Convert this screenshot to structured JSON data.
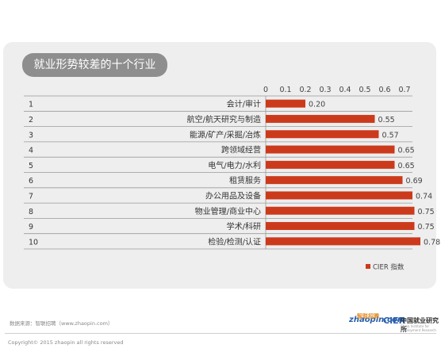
{
  "chart_data": {
    "type": "bar",
    "orientation": "horizontal",
    "title": "就业形势较差的十个行业",
    "ranks": [
      "1",
      "2",
      "3",
      "4",
      "5",
      "6",
      "7",
      "8",
      "9",
      "10"
    ],
    "categories": [
      "会计/审计",
      "航空/航天研究与制造",
      "能源/矿产/采掘/冶炼",
      "跨领域经营",
      "电气/电力/水利",
      "租赁服务",
      "办公用品及设备",
      "物业管理/商业中心",
      "学术/科研",
      "检验/检测/认证"
    ],
    "values": [
      0.2,
      0.55,
      0.57,
      0.65,
      0.65,
      0.69,
      0.74,
      0.75,
      0.75,
      0.78
    ],
    "value_labels": [
      "0.20",
      "0.55",
      "0.57",
      "0.65",
      "0.65",
      "0.69",
      "0.74",
      "0.75",
      "0.75",
      "0.78"
    ],
    "x_ticks": [
      "0",
      "0.1",
      "0.2",
      "0.3",
      "0.4",
      "0.5",
      "0.6",
      "0.7"
    ],
    "xlim": [
      0,
      0.7
    ],
    "legend": "CIER 指数",
    "legend_position": "bottom-right",
    "bar_color": "#cc3a1c"
  },
  "footer": {
    "source": "数据来源：智联招聘（www.zhaopin.com）",
    "copyright": "Copyright© 2015 zhaopin all rights reserved",
    "logo_zhaopin": "zhaopin.com",
    "logo_zhaopin_top": "智联招聘",
    "logo_cier": "CIER",
    "logo_cier_name": "中国就业研究所",
    "logo_cier_sub": "China Institute for Employment Research"
  }
}
